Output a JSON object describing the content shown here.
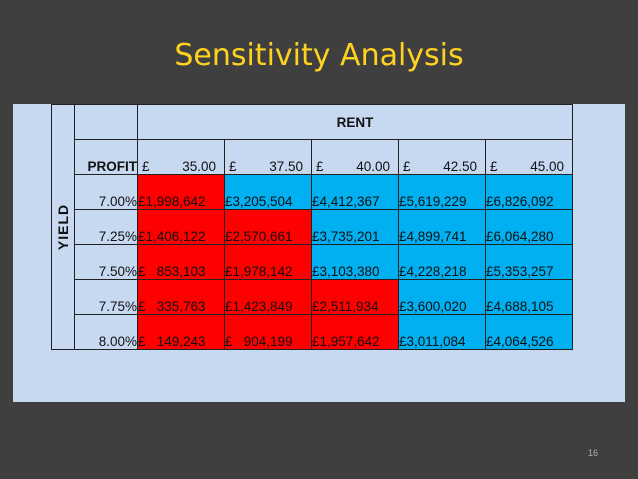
{
  "title": "Sensitivity Analysis",
  "table": {
    "rent_label": "RENT",
    "yield_label": "YIELD",
    "corner_label": "PROFIT",
    "rents": [
      {
        "symbol": "£",
        "value": "35.00"
      },
      {
        "symbol": "£",
        "value": "37.50"
      },
      {
        "symbol": "£",
        "value": "40.00"
      },
      {
        "symbol": "£",
        "value": "42.50"
      },
      {
        "symbol": "£",
        "value": "45.00"
      }
    ],
    "rows": [
      {
        "yield": "7.00%",
        "values": [
          "£1,998,642",
          "£3,205,504",
          "£4,412,367",
          "£5,619,229",
          "£6,826,092"
        ],
        "colors": [
          "red",
          "blue",
          "blue",
          "blue",
          "blue"
        ]
      },
      {
        "yield": "7.25%",
        "values": [
          "£1,406,122",
          "£2,570,661",
          "£3,735,201",
          "£4,899,741",
          "£6,064,280"
        ],
        "colors": [
          "red",
          "red",
          "blue",
          "blue",
          "blue"
        ]
      },
      {
        "yield": "7.50%",
        "values": [
          "£   853,103",
          "£1,978,142",
          "£3,103,380",
          "£4,228,218",
          "£5,353,257"
        ],
        "colors": [
          "red",
          "red",
          "blue",
          "blue",
          "blue"
        ]
      },
      {
        "yield": "7.75%",
        "values": [
          "£   335,763",
          "£1,423,849",
          "£2,511,934",
          "£3,600,020",
          "£4,688,105"
        ],
        "colors": [
          "red",
          "red",
          "red",
          "blue",
          "blue"
        ]
      },
      {
        "yield": "8.00%",
        "values": [
          "£   149,243",
          "£   904,199",
          "£1,957,642",
          "£3,011,084",
          "£4,064,526"
        ],
        "colors": [
          "red",
          "red",
          "red",
          "blue",
          "blue"
        ]
      }
    ],
    "colors": {
      "red": "#ff0000",
      "blue": "#00b0f0",
      "header_bg": "#c6d9f1"
    }
  },
  "slide_number": "16"
}
